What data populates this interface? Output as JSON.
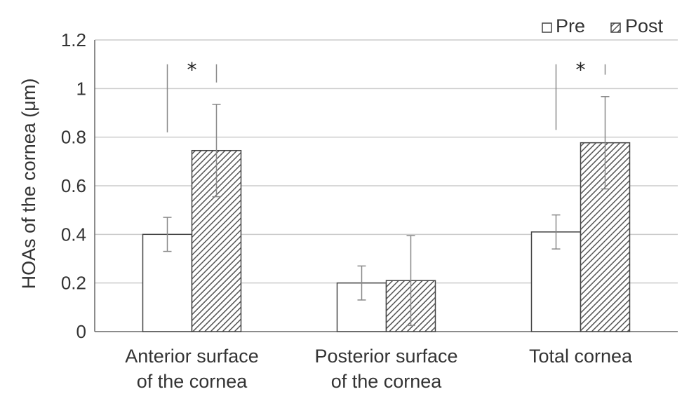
{
  "chart_data": {
    "type": "bar",
    "title": "",
    "xlabel": "",
    "ylabel": "HOAs of the cornea (μm)",
    "ylim": [
      0,
      1.2
    ],
    "yticks": [
      0,
      0.2,
      0.4,
      0.6,
      0.8,
      1,
      1.2
    ],
    "ytick_labels": [
      "0",
      "0.2",
      "0.4",
      "0.6",
      "0.8",
      "1",
      "1.2"
    ],
    "grid": true,
    "legend_position": "top-right",
    "categories": [
      [
        "Anterior surface",
        "of the cornea"
      ],
      [
        "Posterior surface",
        "of the cornea"
      ],
      [
        "Total cornea"
      ]
    ],
    "series": [
      {
        "name": "Pre",
        "values": [
          0.4,
          0.2,
          0.41
        ],
        "error": [
          0.07,
          0.07,
          0.07
        ],
        "style": "open",
        "color": "#ffffff"
      },
      {
        "name": "Post",
        "values": [
          0.745,
          0.21,
          0.777
        ],
        "error": [
          0.19,
          0.185,
          0.19
        ],
        "style": "hatched",
        "color": "#555555"
      }
    ],
    "significance": [
      {
        "category_index": 0,
        "label": "*"
      },
      {
        "category_index": 2,
        "label": "*"
      }
    ]
  },
  "colors": {
    "axis": "#666666",
    "grid": "#cccccc",
    "bar_edge": "#444444",
    "error_bar": "#888888",
    "text": "#333333"
  }
}
